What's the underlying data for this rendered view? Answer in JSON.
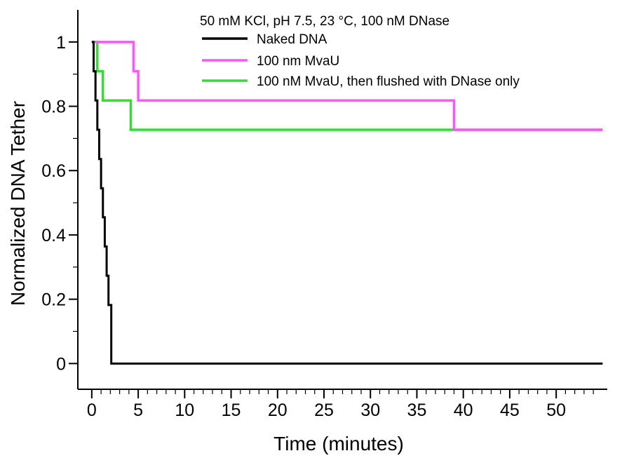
{
  "chart_data": {
    "type": "line",
    "step": true,
    "title": "",
    "condition_text": "50 mM KCl, pH 7.5, 23 °C, 100 nM DNase",
    "xlabel": "Time (minutes)",
    "ylabel": "Normalized DNA Tether",
    "xlim": [
      -1.5,
      55.5
    ],
    "ylim": [
      -0.08,
      1.1
    ],
    "x_ticks": [
      0,
      5,
      10,
      15,
      20,
      25,
      30,
      35,
      40,
      45,
      50
    ],
    "x_tick_labels": [
      "0",
      "5",
      "10",
      "15",
      "20",
      "25",
      "30",
      "35",
      "40",
      "45",
      "50"
    ],
    "y_ticks": [
      0,
      0.2,
      0.4,
      0.6,
      0.8,
      1
    ],
    "y_tick_labels": [
      "0",
      "0.2",
      "0.4",
      "0.6",
      "0.8",
      "1"
    ],
    "grid": false,
    "legend_position": "top-right",
    "series": [
      {
        "name": "Naked DNA",
        "color": "#000000",
        "x": [
          0,
          0.2,
          0.4,
          0.6,
          0.8,
          1.0,
          1.2,
          1.4,
          1.6,
          1.8,
          2.1,
          55
        ],
        "y": [
          1,
          0.909,
          0.818,
          0.727,
          0.636,
          0.545,
          0.455,
          0.364,
          0.273,
          0.182,
          0,
          0
        ]
      },
      {
        "name": "100 nm MvaU",
        "color": "#ff55ff",
        "x": [
          0,
          4.5,
          5.0,
          39.0,
          55
        ],
        "y": [
          1,
          0.909,
          0.818,
          0.727,
          0.727
        ]
      },
      {
        "name": "100 nM MvaU, then flushed with DNase only",
        "color": "#33dd33",
        "x": [
          0,
          0.6,
          1.2,
          4.2,
          55
        ],
        "y": [
          1,
          0.909,
          0.818,
          0.727,
          0.727
        ]
      }
    ]
  }
}
